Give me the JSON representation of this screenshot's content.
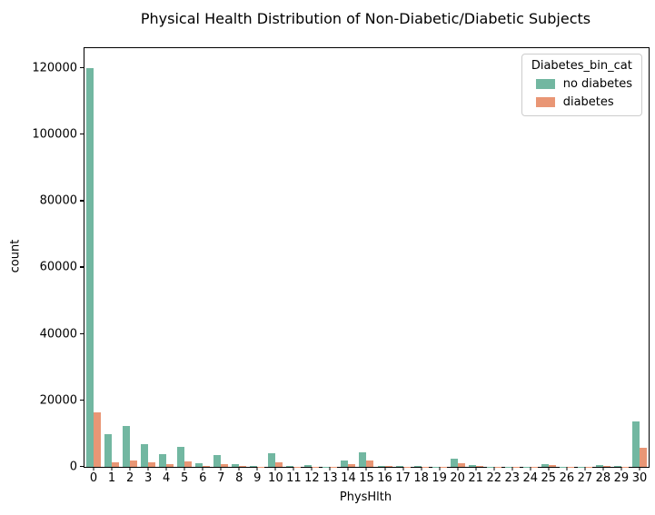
{
  "chart_data": {
    "type": "bar",
    "title": "Physical Health Distribution of Non-Diabetic/Diabetic Subjects",
    "xlabel": "PhysHlth",
    "ylabel": "count",
    "legend_title": "Diabetes_bin_cat",
    "legend_position": "upper-right",
    "grid": false,
    "ylim": [
      0,
      126000
    ],
    "yticks": [
      0,
      20000,
      40000,
      60000,
      80000,
      100000,
      120000
    ],
    "categories": [
      "0",
      "1",
      "2",
      "3",
      "4",
      "5",
      "6",
      "7",
      "8",
      "9",
      "10",
      "11",
      "12",
      "13",
      "14",
      "15",
      "16",
      "17",
      "18",
      "19",
      "20",
      "21",
      "22",
      "23",
      "24",
      "25",
      "26",
      "27",
      "28",
      "29",
      "30"
    ],
    "series": [
      {
        "name": "no diabetes",
        "color": "#72b7a1",
        "values": [
          120000,
          9800,
          12400,
          6900,
          3700,
          6100,
          1150,
          3650,
          800,
          400,
          4050,
          200,
          480,
          120,
          2050,
          4250,
          400,
          200,
          250,
          80,
          2400,
          520,
          80,
          70,
          100,
          950,
          80,
          120,
          600,
          250,
          13550
        ]
      },
      {
        "name": "diabetes",
        "color": "#e99675",
        "values": [
          16500,
          1250,
          2050,
          1300,
          900,
          1550,
          300,
          950,
          200,
          100,
          1300,
          80,
          120,
          60,
          800,
          2050,
          150,
          80,
          100,
          50,
          1150,
          200,
          50,
          40,
          60,
          420,
          50,
          60,
          220,
          100,
          5700
        ]
      }
    ]
  }
}
